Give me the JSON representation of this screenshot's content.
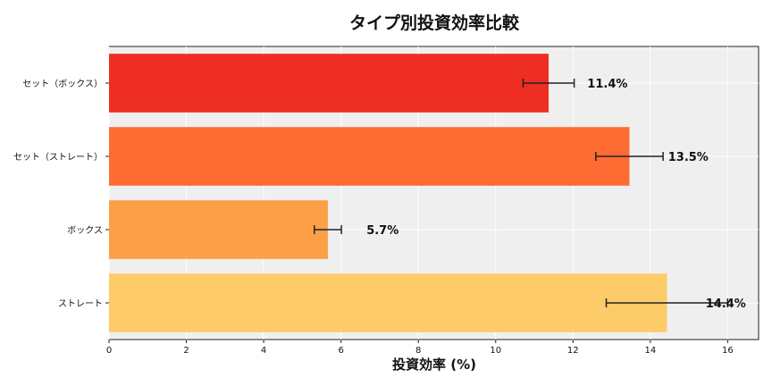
{
  "chart_data": {
    "type": "bar",
    "orientation": "horizontal",
    "title": "タイプ別投資効率比較",
    "xlabel": "投資効率 (%)",
    "ylabel": "",
    "xlim": [
      0,
      16.8
    ],
    "xticks": [
      0,
      2,
      4,
      6,
      8,
      10,
      12,
      14,
      16
    ],
    "grid": true,
    "categories": [
      "セット（ボックス）",
      "セット（ストレート）",
      "ボックス",
      "ストレート"
    ],
    "values": [
      11.37,
      13.46,
      5.66,
      14.43
    ],
    "errors": [
      0.66,
      0.87,
      0.35,
      1.57
    ],
    "data_labels": [
      "11.4%",
      "13.5%",
      "5.7%",
      "14.4%"
    ],
    "colors": [
      "#ee2e22",
      "#fe6b33",
      "#fd9f47",
      "#fecb6a"
    ],
    "background": "#efefef"
  }
}
